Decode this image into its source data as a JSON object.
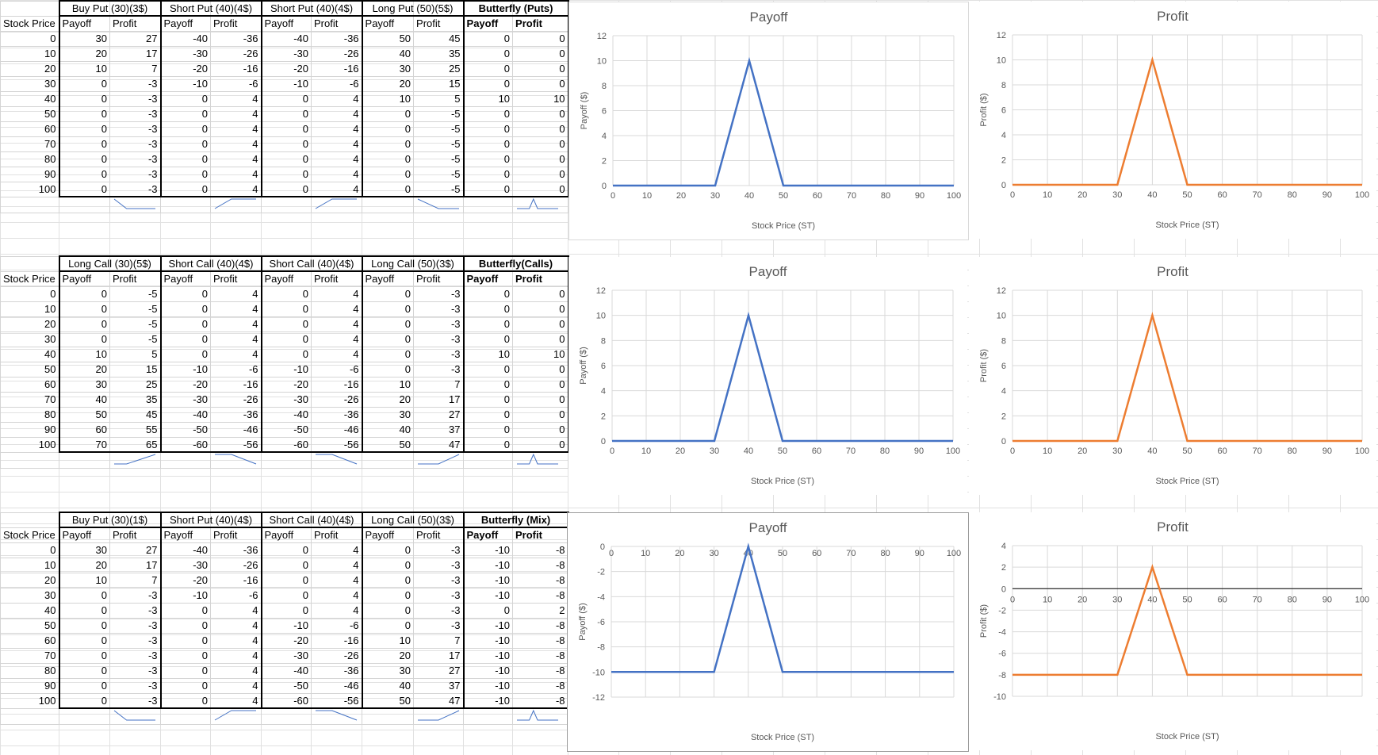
{
  "tables": [
    {
      "stock_label": "Stock Price",
      "legs": [
        "Buy Put (30)(3$)",
        "Short Put (40)(4$)",
        "Short Put (40)(4$)",
        "Long Put (50)(5$)",
        "Butterfly (Puts)"
      ],
      "subheaders": [
        "Payoff",
        "Profit"
      ],
      "rows": [
        [
          "0",
          "30",
          "27",
          "-40",
          "-36",
          "-40",
          "-36",
          "50",
          "45",
          "0",
          "0"
        ],
        [
          "10",
          "20",
          "17",
          "-30",
          "-26",
          "-30",
          "-26",
          "40",
          "35",
          "0",
          "0"
        ],
        [
          "20",
          "10",
          "7",
          "-20",
          "-16",
          "-20",
          "-16",
          "30",
          "25",
          "0",
          "0"
        ],
        [
          "30",
          "0",
          "-3",
          "-10",
          "-6",
          "-10",
          "-6",
          "20",
          "15",
          "0",
          "0"
        ],
        [
          "40",
          "0",
          "-3",
          "0",
          "4",
          "0",
          "4",
          "10",
          "5",
          "10",
          "10"
        ],
        [
          "50",
          "0",
          "-3",
          "0",
          "4",
          "0",
          "4",
          "0",
          "-5",
          "0",
          "0"
        ],
        [
          "60",
          "0",
          "-3",
          "0",
          "4",
          "0",
          "4",
          "0",
          "-5",
          "0",
          "0"
        ],
        [
          "70",
          "0",
          "-3",
          "0",
          "4",
          "0",
          "4",
          "0",
          "-5",
          "0",
          "0"
        ],
        [
          "80",
          "0",
          "-3",
          "0",
          "4",
          "0",
          "4",
          "0",
          "-5",
          "0",
          "0"
        ],
        [
          "90",
          "0",
          "-3",
          "0",
          "4",
          "0",
          "4",
          "0",
          "-5",
          "0",
          "0"
        ],
        [
          "100",
          "0",
          "-3",
          "0",
          "4",
          "0",
          "4",
          "0",
          "-5",
          "0",
          "0"
        ]
      ],
      "sparklines": [
        [
          27,
          17,
          7,
          -3,
          -3,
          -3,
          -3,
          -3,
          -3,
          -3,
          -3
        ],
        [
          -36,
          -26,
          -16,
          -6,
          4,
          4,
          4,
          4,
          4,
          4,
          4
        ],
        [
          -36,
          -26,
          -16,
          -6,
          4,
          4,
          4,
          4,
          4,
          4,
          4
        ],
        [
          45,
          35,
          25,
          15,
          5,
          -5,
          -5,
          -5,
          -5,
          -5,
          -5
        ],
        [
          0,
          0,
          0,
          0,
          10,
          0,
          0,
          0,
          0,
          0,
          0
        ]
      ]
    },
    {
      "stock_label": "Stock Price",
      "legs": [
        "Long Call (30)(5$)",
        "Short Call (40)(4$)",
        "Short Call (40)(4$)",
        "Long Call (50)(3$)",
        "Butterfly(Calls)"
      ],
      "subheaders": [
        "Payoff",
        "Profit"
      ],
      "rows": [
        [
          "0",
          "0",
          "-5",
          "0",
          "4",
          "0",
          "4",
          "0",
          "-3",
          "0",
          "0"
        ],
        [
          "10",
          "0",
          "-5",
          "0",
          "4",
          "0",
          "4",
          "0",
          "-3",
          "0",
          "0"
        ],
        [
          "20",
          "0",
          "-5",
          "0",
          "4",
          "0",
          "4",
          "0",
          "-3",
          "0",
          "0"
        ],
        [
          "30",
          "0",
          "-5",
          "0",
          "4",
          "0",
          "4",
          "0",
          "-3",
          "0",
          "0"
        ],
        [
          "40",
          "10",
          "5",
          "0",
          "4",
          "0",
          "4",
          "0",
          "-3",
          "10",
          "10"
        ],
        [
          "50",
          "20",
          "15",
          "-10",
          "-6",
          "-10",
          "-6",
          "0",
          "-3",
          "0",
          "0"
        ],
        [
          "60",
          "30",
          "25",
          "-20",
          "-16",
          "-20",
          "-16",
          "10",
          "7",
          "0",
          "0"
        ],
        [
          "70",
          "40",
          "35",
          "-30",
          "-26",
          "-30",
          "-26",
          "20",
          "17",
          "0",
          "0"
        ],
        [
          "80",
          "50",
          "45",
          "-40",
          "-36",
          "-40",
          "-36",
          "30",
          "27",
          "0",
          "0"
        ],
        [
          "90",
          "60",
          "55",
          "-50",
          "-46",
          "-50",
          "-46",
          "40",
          "37",
          "0",
          "0"
        ],
        [
          "100",
          "70",
          "65",
          "-60",
          "-56",
          "-60",
          "-56",
          "50",
          "47",
          "0",
          "0"
        ]
      ],
      "sparklines": [
        [
          -5,
          -5,
          -5,
          -5,
          5,
          15,
          25,
          35,
          45,
          55,
          65
        ],
        [
          4,
          4,
          4,
          4,
          4,
          -6,
          -16,
          -26,
          -36,
          -46,
          -56
        ],
        [
          4,
          4,
          4,
          4,
          4,
          -6,
          -16,
          -26,
          -36,
          -46,
          -56
        ],
        [
          -3,
          -3,
          -3,
          -3,
          -3,
          -3,
          7,
          17,
          27,
          37,
          47
        ],
        [
          0,
          0,
          0,
          0,
          10,
          0,
          0,
          0,
          0,
          0,
          0
        ]
      ]
    },
    {
      "stock_label": "Stock Price",
      "legs": [
        "Buy Put (30)(1$)",
        "Short Put (40)(4$)",
        "Short Call (40)(4$)",
        "Long Call (50)(3$)",
        "Butterfly (Mix)"
      ],
      "subheaders": [
        "Payoff",
        "Profit"
      ],
      "rows": [
        [
          "0",
          "30",
          "27",
          "-40",
          "-36",
          "0",
          "4",
          "0",
          "-3",
          "-10",
          "-8"
        ],
        [
          "10",
          "20",
          "17",
          "-30",
          "-26",
          "0",
          "4",
          "0",
          "-3",
          "-10",
          "-8"
        ],
        [
          "20",
          "10",
          "7",
          "-20",
          "-16",
          "0",
          "4",
          "0",
          "-3",
          "-10",
          "-8"
        ],
        [
          "30",
          "0",
          "-3",
          "-10",
          "-6",
          "0",
          "4",
          "0",
          "-3",
          "-10",
          "-8"
        ],
        [
          "40",
          "0",
          "-3",
          "0",
          "4",
          "0",
          "4",
          "0",
          "-3",
          "0",
          "2"
        ],
        [
          "50",
          "0",
          "-3",
          "0",
          "4",
          "-10",
          "-6",
          "0",
          "-3",
          "-10",
          "-8"
        ],
        [
          "60",
          "0",
          "-3",
          "0",
          "4",
          "-20",
          "-16",
          "10",
          "7",
          "-10",
          "-8"
        ],
        [
          "70",
          "0",
          "-3",
          "0",
          "4",
          "-30",
          "-26",
          "20",
          "17",
          "-10",
          "-8"
        ],
        [
          "80",
          "0",
          "-3",
          "0",
          "4",
          "-40",
          "-36",
          "30",
          "27",
          "-10",
          "-8"
        ],
        [
          "90",
          "0",
          "-3",
          "0",
          "4",
          "-50",
          "-46",
          "40",
          "37",
          "-10",
          "-8"
        ],
        [
          "100",
          "0",
          "-3",
          "0",
          "4",
          "-60",
          "-56",
          "50",
          "47",
          "-10",
          "-8"
        ]
      ],
      "sparklines": [
        [
          27,
          17,
          7,
          -3,
          -3,
          -3,
          -3,
          -3,
          -3,
          -3,
          -3
        ],
        [
          -36,
          -26,
          -16,
          -6,
          4,
          4,
          4,
          4,
          4,
          4,
          4
        ],
        [
          4,
          4,
          4,
          4,
          4,
          -6,
          -16,
          -26,
          -36,
          -46,
          -56
        ],
        [
          -3,
          -3,
          -3,
          -3,
          -3,
          -3,
          7,
          17,
          27,
          37,
          47
        ],
        [
          -8,
          -8,
          -8,
          -8,
          2,
          -8,
          -8,
          -8,
          -8,
          -8,
          -8
        ]
      ]
    }
  ],
  "chart_data": [
    {
      "type": "line",
      "title": "Payoff",
      "xlabel": "Stock Price (ST)",
      "ylabel": "Payoff ($)",
      "x": [
        0,
        10,
        20,
        30,
        40,
        50,
        60,
        70,
        80,
        90,
        100
      ],
      "y": [
        0,
        0,
        0,
        0,
        10,
        0,
        0,
        0,
        0,
        0,
        0
      ],
      "xlim": [
        0,
        100
      ],
      "ylim": [
        0,
        12
      ],
      "xticks": [
        0,
        10,
        20,
        30,
        40,
        50,
        60,
        70,
        80,
        90,
        100
      ],
      "yticks": [
        0,
        2,
        4,
        6,
        8,
        10,
        12
      ],
      "color": "#4472c4",
      "grid": true
    },
    {
      "type": "line",
      "title": "Profit",
      "xlabel": "Stock Price (ST)",
      "ylabel": "Profit ($)",
      "x": [
        0,
        10,
        20,
        30,
        40,
        50,
        60,
        70,
        80,
        90,
        100
      ],
      "y": [
        0,
        0,
        0,
        0,
        10,
        0,
        0,
        0,
        0,
        0,
        0
      ],
      "xlim": [
        0,
        100
      ],
      "ylim": [
        0,
        12
      ],
      "xticks": [
        0,
        10,
        20,
        30,
        40,
        50,
        60,
        70,
        80,
        90,
        100
      ],
      "yticks": [
        0,
        2,
        4,
        6,
        8,
        10,
        12
      ],
      "color": "#ed7d31",
      "grid": true
    },
    {
      "type": "line",
      "title": "Payoff",
      "xlabel": "Stock Price (ST)",
      "ylabel": "Payoff ($)",
      "x": [
        0,
        10,
        20,
        30,
        40,
        50,
        60,
        70,
        80,
        90,
        100
      ],
      "y": [
        0,
        0,
        0,
        0,
        10,
        0,
        0,
        0,
        0,
        0,
        0
      ],
      "xlim": [
        0,
        100
      ],
      "ylim": [
        0,
        12
      ],
      "xticks": [
        0,
        10,
        20,
        30,
        40,
        50,
        60,
        70,
        80,
        90,
        100
      ],
      "yticks": [
        0,
        2,
        4,
        6,
        8,
        10,
        12
      ],
      "color": "#4472c4",
      "grid": true
    },
    {
      "type": "line",
      "title": "Profit",
      "xlabel": "Stock Price (ST)",
      "ylabel": "Profit ($)",
      "x": [
        0,
        10,
        20,
        30,
        40,
        50,
        60,
        70,
        80,
        90,
        100
      ],
      "y": [
        0,
        0,
        0,
        0,
        10,
        0,
        0,
        0,
        0,
        0,
        0
      ],
      "xlim": [
        0,
        100
      ],
      "ylim": [
        0,
        12
      ],
      "xticks": [
        0,
        10,
        20,
        30,
        40,
        50,
        60,
        70,
        80,
        90,
        100
      ],
      "yticks": [
        0,
        2,
        4,
        6,
        8,
        10,
        12
      ],
      "color": "#ed7d31",
      "grid": true
    },
    {
      "type": "line",
      "title": "Payoff",
      "xlabel": "Stock Price (ST)",
      "ylabel": "Payoff ($)",
      "x": [
        0,
        10,
        20,
        30,
        40,
        50,
        60,
        70,
        80,
        90,
        100
      ],
      "y": [
        -10,
        -10,
        -10,
        -10,
        0,
        -10,
        -10,
        -10,
        -10,
        -10,
        -10
      ],
      "xlim": [
        0,
        100
      ],
      "ylim": [
        -12,
        0
      ],
      "xticks": [
        0,
        10,
        20,
        30,
        40,
        50,
        60,
        70,
        80,
        90,
        100
      ],
      "yticks": [
        0,
        -2,
        -4,
        -6,
        -8,
        -10,
        -12
      ],
      "color": "#4472c4",
      "grid": true,
      "x_axis_at_top": true
    },
    {
      "type": "line",
      "title": "Profit",
      "xlabel": "Stock Price (ST)",
      "ylabel": "Profit ($)",
      "x": [
        0,
        10,
        20,
        30,
        40,
        50,
        60,
        70,
        80,
        90,
        100
      ],
      "y": [
        -8,
        -8,
        -8,
        -8,
        2,
        -8,
        -8,
        -8,
        -8,
        -8,
        -8
      ],
      "xlim": [
        0,
        100
      ],
      "ylim": [
        -10,
        4
      ],
      "xticks": [
        0,
        10,
        20,
        30,
        40,
        50,
        60,
        70,
        80,
        90,
        100
      ],
      "yticks": [
        4,
        2,
        0,
        -2,
        -4,
        -6,
        -8,
        -10
      ],
      "color": "#ed7d31",
      "grid": true,
      "zero_line": true
    }
  ]
}
